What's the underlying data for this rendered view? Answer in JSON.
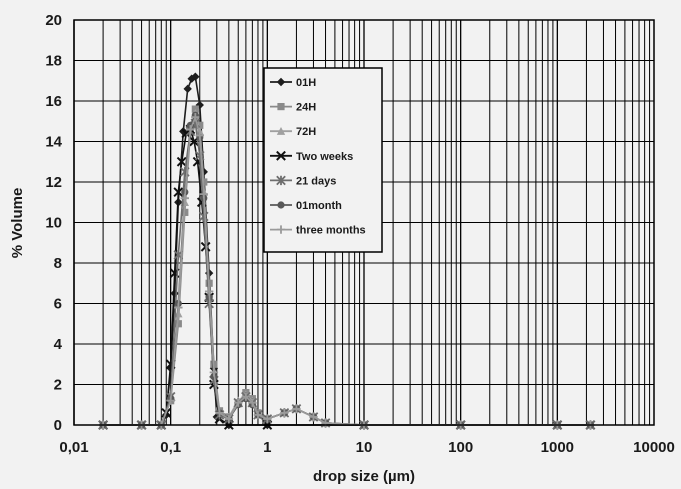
{
  "chart_data": {
    "type": "line",
    "title": "",
    "xlabel": "drop size (µm)",
    "ylabel": "% Volume",
    "xscale": "log",
    "xlim": [
      0.01,
      10000
    ],
    "ylim": [
      0,
      20
    ],
    "x_tick_labels": [
      "0,01",
      "0,1",
      "1",
      "10",
      "100",
      "1000",
      "10000"
    ],
    "y_ticks": [
      0,
      2,
      4,
      6,
      8,
      10,
      12,
      14,
      16,
      18,
      20
    ],
    "grid": true,
    "legend_position": "top-center",
    "series": [
      {
        "name": "01H",
        "color": "#1e1e1e",
        "marker": "diamond",
        "x": [
          0.02,
          0.05,
          0.08,
          0.09,
          0.1,
          0.11,
          0.12,
          0.135,
          0.15,
          0.165,
          0.18,
          0.2,
          0.22,
          0.25,
          0.28,
          0.3,
          0.4,
          1,
          10,
          100,
          1000,
          2200
        ],
        "y": [
          0,
          0,
          0,
          0.5,
          2.8,
          6.5,
          11,
          14.5,
          16.6,
          17.1,
          17.2,
          15.8,
          12.5,
          7.5,
          2.8,
          0.4,
          0,
          0,
          0,
          0,
          0,
          0
        ]
      },
      {
        "name": "24H",
        "color": "#8a8a8a",
        "marker": "square",
        "x": [
          0.02,
          0.05,
          0.08,
          0.1,
          0.12,
          0.14,
          0.16,
          0.18,
          0.2,
          0.22,
          0.25,
          0.28,
          0.32,
          0.4,
          0.5,
          0.6,
          0.7,
          0.8,
          1,
          1.5,
          2,
          3,
          4,
          10,
          100,
          1000,
          2200
        ],
        "y": [
          0,
          0,
          0,
          1.2,
          5,
          10.5,
          14.5,
          15.6,
          14.8,
          12,
          7,
          3,
          0.7,
          0.4,
          1.1,
          1.6,
          1.3,
          0.6,
          0.3,
          0.6,
          0.8,
          0.4,
          0.1,
          0,
          0,
          0,
          0
        ]
      },
      {
        "name": "72H",
        "color": "#a0a0a0",
        "marker": "triangle",
        "x": [
          0.02,
          0.05,
          0.08,
          0.1,
          0.12,
          0.14,
          0.16,
          0.18,
          0.2,
          0.22,
          0.25,
          0.28,
          0.32,
          0.4,
          0.5,
          0.6,
          0.7,
          0.8,
          1,
          1.5,
          2,
          3,
          4,
          10,
          100,
          1000,
          2200
        ],
        "y": [
          0,
          0,
          0,
          1.5,
          5.5,
          11,
          14.8,
          15.4,
          14.5,
          11.5,
          6.5,
          2.5,
          0.6,
          0.4,
          1.2,
          1.5,
          1.2,
          0.5,
          0.3,
          0.6,
          0.8,
          0.4,
          0.1,
          0,
          0,
          0,
          0
        ]
      },
      {
        "name": "Two weeks",
        "color": "#111111",
        "marker": "x",
        "x": [
          0.02,
          0.05,
          0.08,
          0.09,
          0.1,
          0.11,
          0.12,
          0.13,
          0.145,
          0.16,
          0.175,
          0.19,
          0.21,
          0.23,
          0.25,
          0.28,
          0.32,
          0.4,
          1,
          10,
          100,
          1000,
          2200
        ],
        "y": [
          0,
          0,
          0,
          0.6,
          3,
          7.5,
          11.5,
          13,
          14.4,
          14.6,
          14,
          13,
          11,
          8.8,
          6.3,
          2,
          0.3,
          0,
          0,
          0,
          0,
          0,
          0
        ]
      },
      {
        "name": "21 days",
        "color": "#6e6e6e",
        "marker": "star",
        "x": [
          0.02,
          0.05,
          0.08,
          0.1,
          0.12,
          0.14,
          0.16,
          0.18,
          0.2,
          0.22,
          0.25,
          0.28,
          0.32,
          0.4,
          0.5,
          0.6,
          0.7,
          0.8,
          1,
          1.5,
          2,
          3,
          4,
          10,
          100,
          1000,
          2200
        ],
        "y": [
          0,
          0,
          0,
          1.4,
          8.4,
          12.5,
          14.5,
          14.9,
          13.3,
          10.3,
          6,
          2.2,
          0.5,
          0.3,
          1.1,
          1.4,
          1.1,
          0.5,
          0.3,
          0.6,
          0.8,
          0.4,
          0.1,
          0,
          0,
          0,
          0
        ]
      },
      {
        "name": "01month",
        "color": "#585858",
        "marker": "circle",
        "x": [
          0.02,
          0.05,
          0.08,
          0.1,
          0.12,
          0.14,
          0.16,
          0.18,
          0.2,
          0.22,
          0.25,
          0.28,
          0.32,
          0.4,
          0.5,
          0.6,
          0.7,
          0.8,
          1,
          1.5,
          2,
          3,
          4,
          10,
          100,
          1000,
          2200
        ],
        "y": [
          0,
          0,
          0,
          1.3,
          6,
          11.5,
          14.8,
          15.3,
          14.2,
          11.2,
          6.3,
          2.4,
          0.6,
          0.3,
          1,
          1.3,
          1,
          0.5,
          0.3,
          0.6,
          0.8,
          0.4,
          0.1,
          0,
          0,
          0,
          0
        ]
      },
      {
        "name": "three months",
        "color": "#9a9a9a",
        "marker": "plus",
        "x": [
          0.02,
          0.05,
          0.08,
          0.1,
          0.12,
          0.14,
          0.16,
          0.18,
          0.2,
          0.22,
          0.25,
          0.28,
          0.32,
          0.4,
          0.5,
          0.6,
          0.7,
          0.8,
          1,
          1.5,
          2,
          3,
          4,
          10,
          100,
          1000,
          2200
        ],
        "y": [
          0,
          0,
          0,
          1.2,
          5.8,
          11.2,
          14.6,
          15.2,
          14.3,
          11.4,
          6.6,
          2.6,
          0.6,
          0.3,
          1.1,
          1.4,
          1.1,
          0.5,
          0.3,
          0.6,
          0.8,
          0.4,
          0.1,
          0,
          0,
          0,
          0
        ]
      }
    ]
  }
}
